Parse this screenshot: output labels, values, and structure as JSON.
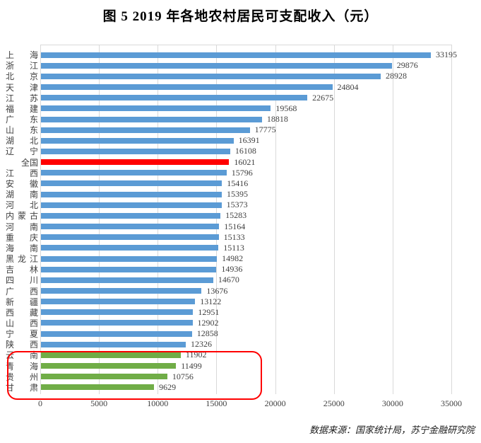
{
  "source_note": "数据来源：国家统计局，苏宁金融研究院",
  "chart_data": {
    "type": "bar",
    "orientation": "horizontal",
    "title": "图 5  2019 年各地农村居民可支配收入（元）",
    "xlabel": "",
    "ylabel": "",
    "xlim": [
      0,
      35000
    ],
    "x_ticks": [
      0,
      5000,
      10000,
      15000,
      20000,
      25000,
      30000,
      35000
    ],
    "grid": "vertical",
    "legend": "none",
    "value_labels": "outside-end",
    "rows": [
      {
        "label": "上 海",
        "value": 33195,
        "color": "blue"
      },
      {
        "label": "浙 江",
        "value": 29876,
        "color": "blue"
      },
      {
        "label": "北 京",
        "value": 28928,
        "color": "blue"
      },
      {
        "label": "天 津",
        "value": 24804,
        "color": "blue"
      },
      {
        "label": "江 苏",
        "value": 22675,
        "color": "blue"
      },
      {
        "label": "福 建",
        "value": 19568,
        "color": "blue"
      },
      {
        "label": "广 东",
        "value": 18818,
        "color": "blue"
      },
      {
        "label": "山 东",
        "value": 17775,
        "color": "blue"
      },
      {
        "label": "湖 北",
        "value": 16391,
        "color": "blue"
      },
      {
        "label": "辽 宁",
        "value": 16108,
        "color": "blue"
      },
      {
        "label": "全国",
        "value": 16021,
        "color": "red"
      },
      {
        "label": "江 西",
        "value": 15796,
        "color": "blue"
      },
      {
        "label": "安 徽",
        "value": 15416,
        "color": "blue"
      },
      {
        "label": "湖 南",
        "value": 15395,
        "color": "blue"
      },
      {
        "label": "河 北",
        "value": 15373,
        "color": "blue"
      },
      {
        "label": "内蒙古",
        "value": 15283,
        "color": "blue"
      },
      {
        "label": "河 南",
        "value": 15164,
        "color": "blue"
      },
      {
        "label": "重 庆",
        "value": 15133,
        "color": "blue"
      },
      {
        "label": "海 南",
        "value": 15113,
        "color": "blue"
      },
      {
        "label": "黑龙江",
        "value": 14982,
        "color": "blue"
      },
      {
        "label": "吉 林",
        "value": 14936,
        "color": "blue"
      },
      {
        "label": "四 川",
        "value": 14670,
        "color": "blue"
      },
      {
        "label": "广 西",
        "value": 13676,
        "color": "blue"
      },
      {
        "label": "新 疆",
        "value": 13122,
        "color": "blue"
      },
      {
        "label": "西 藏",
        "value": 12951,
        "color": "blue"
      },
      {
        "label": "山 西",
        "value": 12902,
        "color": "blue"
      },
      {
        "label": "宁 夏",
        "value": 12858,
        "color": "blue"
      },
      {
        "label": "陕 西",
        "value": 12326,
        "color": "blue"
      },
      {
        "label": "云 南",
        "value": 11902,
        "color": "green"
      },
      {
        "label": "青 海",
        "value": 11499,
        "color": "green"
      },
      {
        "label": "贵 州",
        "value": 10756,
        "color": "green"
      },
      {
        "label": "甘 肃",
        "value": 9629,
        "color": "green"
      }
    ],
    "highlight": {
      "national_row": "全国",
      "lowest_rows": [
        "云 南",
        "青 海",
        "贵 州",
        "甘 肃"
      ],
      "annotation": "red rounded rectangle around four lowest provinces"
    },
    "colors": {
      "bar_default": "#5B9BD5",
      "bar_national": "#FF0000",
      "bar_lowest": "#70AD47",
      "gridline": "#D9D9D9",
      "label_text": "#404040",
      "annotation": "#FF0000"
    }
  }
}
